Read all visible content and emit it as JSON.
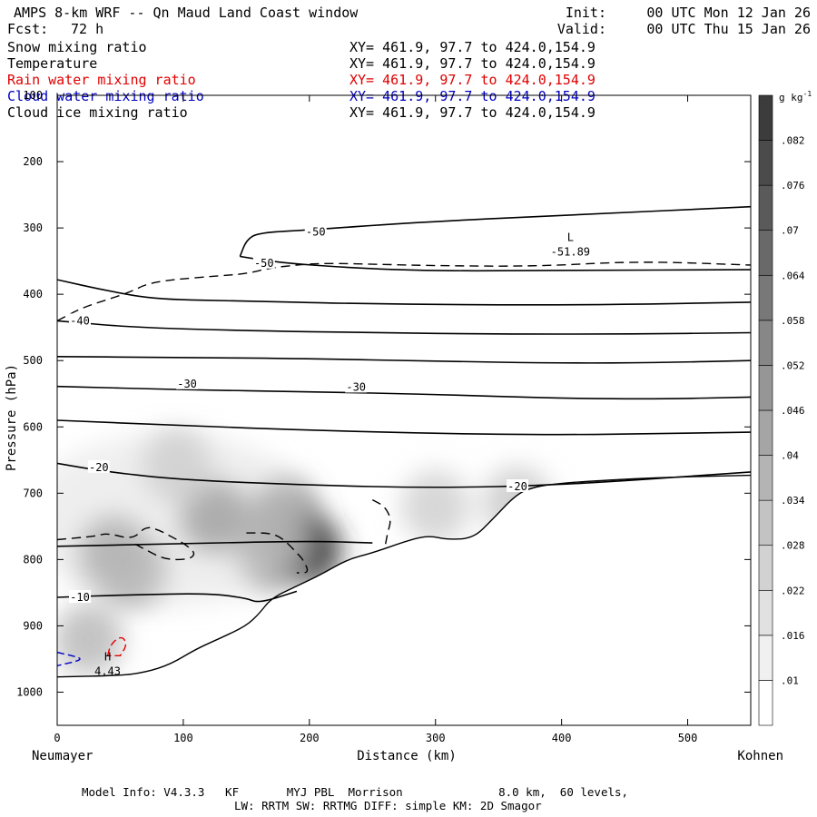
{
  "header": {
    "title": "AMPS 8-km WRF -- Qn Maud Land Coast window",
    "fcst_label": "Fcst:",
    "fcst_value": "72 h",
    "init_label": "Init:",
    "init_value": "00 UTC Mon 12 Jan 26",
    "valid_label": "Valid:",
    "valid_value": "00 UTC Thu 15 Jan 26"
  },
  "fields": [
    {
      "name": "Snow mixing ratio",
      "xy": "XY= 461.9, 97.7 to 424.0,154.9",
      "color": "#000000"
    },
    {
      "name": "Temperature",
      "xy": "XY= 461.9, 97.7 to 424.0,154.9",
      "color": "#000000"
    },
    {
      "name": "Rain water mixing ratio",
      "xy": "XY= 461.9, 97.7 to 424.0,154.9",
      "color": "#e00000"
    },
    {
      "name": "Cloud water mixing ratio",
      "xy": "XY= 461.9, 97.7 to 424.0,154.9",
      "color": "#0000c0"
    },
    {
      "name": "Cloud ice mixing ratio",
      "xy": "XY= 461.9, 97.7 to 424.0,154.9",
      "color": "#000000"
    }
  ],
  "chart_data": {
    "type": "cross-section",
    "xlabel": "Distance (km)",
    "ylabel": "Pressure (hPa)",
    "xlim": [
      0,
      550
    ],
    "ylim": [
      1050,
      100
    ],
    "x_ticks": [
      0,
      100,
      200,
      300,
      400,
      500
    ],
    "y_ticks": [
      200,
      300,
      400,
      500,
      600,
      700,
      800,
      900,
      1000
    ],
    "y_tick_labels": [
      "200",
      "300",
      "400",
      "500",
      "600",
      "700",
      "800",
      "900",
      "1000"
    ],
    "y_top_label": "100",
    "left_end": "Neumayer",
    "right_end": "Kohnen",
    "colorbar": {
      "unit": "g kg",
      "unit_exp": "-1",
      "levels": [
        0.01,
        0.016,
        0.022,
        0.028,
        0.034,
        0.04,
        0.046,
        0.052,
        0.058,
        0.064,
        0.07,
        0.076,
        0.082
      ],
      "labels": [
        ".01",
        ".016",
        ".022",
        ".028",
        ".034",
        ".04",
        ".046",
        ".052",
        ".058",
        ".064",
        ".07",
        ".076",
        ".082"
      ]
    },
    "temperature_labels": [
      {
        "text": "-50",
        "x": 205,
        "p": 306
      },
      {
        "text": "-50",
        "x": 164,
        "p": 353
      },
      {
        "text": "-40",
        "x": 18,
        "p": 440
      },
      {
        "text": "-30",
        "x": 103,
        "p": 535
      },
      {
        "text": "-30",
        "x": 237,
        "p": 540
      },
      {
        "text": "-20",
        "x": 33,
        "p": 661
      },
      {
        "text": "-20",
        "x": 365,
        "p": 690
      },
      {
        "text": "-10",
        "x": 18,
        "p": 857
      }
    ],
    "extrema": [
      {
        "kind": "L",
        "value": "-51.89",
        "x": 407,
        "p": 320
      },
      {
        "kind": "H",
        "value": "4.43",
        "x": 40,
        "p": 952
      }
    ],
    "isotherms": [
      {
        "label": "-50",
        "points": [
          [
            145,
            343
          ],
          [
            150,
            318
          ],
          [
            160,
            307
          ],
          [
            200,
            303
          ],
          [
            280,
            292
          ],
          [
            400,
            281
          ],
          [
            550,
            268
          ]
        ]
      },
      {
        "label": "-50",
        "points": [
          [
            145,
            343
          ],
          [
            175,
            352
          ],
          [
            230,
            360
          ],
          [
            300,
            365
          ],
          [
            400,
            364
          ],
          [
            550,
            363
          ]
        ]
      },
      {
        "label": "-40",
        "points": [
          [
            0,
            378
          ],
          [
            40,
            395
          ],
          [
            80,
            408
          ],
          [
            150,
            410
          ],
          [
            230,
            414
          ],
          [
            330,
            416
          ],
          [
            430,
            416
          ],
          [
            550,
            412
          ]
        ]
      },
      {
        "label": "-40",
        "points": [
          [
            0,
            440
          ],
          [
            60,
            450
          ],
          [
            150,
            455
          ],
          [
            250,
            458
          ],
          [
            350,
            460
          ],
          [
            450,
            460
          ],
          [
            550,
            458
          ]
        ]
      },
      {
        "label": "-30",
        "points": [
          [
            0,
            494
          ],
          [
            80,
            495
          ],
          [
            200,
            497
          ],
          [
            300,
            501
          ],
          [
            400,
            504
          ],
          [
            480,
            503
          ],
          [
            550,
            500
          ]
        ]
      },
      {
        "label": "-30",
        "points": [
          [
            0,
            539
          ],
          [
            100,
            544
          ],
          [
            200,
            547
          ],
          [
            300,
            551
          ],
          [
            400,
            557
          ],
          [
            480,
            558
          ],
          [
            550,
            555
          ]
        ]
      },
      {
        "label": "",
        "points": [
          [
            0,
            590
          ],
          [
            100,
            598
          ],
          [
            200,
            605
          ],
          [
            300,
            610
          ],
          [
            400,
            612
          ],
          [
            480,
            610
          ],
          [
            550,
            608
          ]
        ]
      },
      {
        "label": "",
        "points": [
          [
            0,
            655
          ],
          [
            40,
            668
          ],
          [
            100,
            680
          ],
          [
            200,
            688
          ],
          [
            300,
            692
          ],
          [
            400,
            688
          ],
          [
            550,
            668
          ]
        ]
      },
      {
        "label": "-20",
        "points": [
          [
            0,
            780
          ],
          [
            100,
            776
          ],
          [
            200,
            772
          ],
          [
            250,
            775
          ]
        ]
      },
      {
        "label": "-10",
        "points": [
          [
            0,
            857
          ],
          [
            60,
            853
          ],
          [
            120,
            851
          ],
          [
            150,
            858
          ],
          [
            160,
            866
          ],
          [
            190,
            848
          ]
        ]
      }
    ],
    "terrain": [
      [
        0,
        977
      ],
      [
        50,
        975
      ],
      [
        70,
        970
      ],
      [
        90,
        958
      ],
      [
        110,
        935
      ],
      [
        130,
        918
      ],
      [
        150,
        900
      ],
      [
        160,
        882
      ],
      [
        170,
        858
      ],
      [
        190,
        840
      ],
      [
        210,
        822
      ],
      [
        230,
        800
      ],
      [
        250,
        790
      ],
      [
        280,
        770
      ],
      [
        295,
        764
      ],
      [
        310,
        770
      ],
      [
        330,
        768
      ],
      [
        345,
        740
      ],
      [
        365,
        700
      ],
      [
        380,
        690
      ],
      [
        395,
        686
      ],
      [
        420,
        682
      ],
      [
        480,
        676
      ],
      [
        550,
        673
      ]
    ],
    "snow_blobs": [
      {
        "x": 45,
        "p": 790,
        "value": 0.05
      },
      {
        "x": 60,
        "p": 815,
        "value": 0.04
      },
      {
        "x": 125,
        "p": 735,
        "value": 0.06
      },
      {
        "x": 180,
        "p": 735,
        "value": 0.055
      },
      {
        "x": 198,
        "p": 785,
        "value": 0.085
      },
      {
        "x": 170,
        "p": 790,
        "value": 0.045
      },
      {
        "x": 95,
        "p": 660,
        "value": 0.02
      },
      {
        "x": 25,
        "p": 920,
        "value": 0.022
      },
      {
        "x": 300,
        "p": 720,
        "value": 0.012
      },
      {
        "x": 365,
        "p": 715,
        "value": 0.015
      }
    ],
    "cloud_ice": [
      [
        0,
        440
      ],
      [
        20,
        420
      ],
      [
        40,
        408
      ],
      [
        60,
        395
      ],
      [
        70,
        385
      ],
      [
        90,
        378
      ],
      [
        130,
        372
      ],
      [
        150,
        369
      ],
      [
        170,
        360
      ],
      [
        190,
        356
      ],
      [
        210,
        353
      ],
      [
        260,
        355
      ],
      [
        300,
        357
      ],
      [
        380,
        358
      ],
      [
        460,
        350
      ],
      [
        550,
        356
      ]
    ],
    "cloud_ice_cells": [
      [
        [
          0,
          770
        ],
        [
          30,
          765
        ],
        [
          40,
          760
        ],
        [
          60,
          770
        ],
        [
          70,
          750
        ],
        [
          80,
          755
        ],
        [
          90,
          765
        ],
        [
          100,
          775
        ],
        [
          110,
          790
        ],
        [
          105,
          800
        ],
        [
          85,
          800
        ],
        [
          70,
          785
        ],
        [
          60,
          775
        ]
      ],
      [
        [
          150,
          760
        ],
        [
          170,
          760
        ],
        [
          180,
          770
        ],
        [
          190,
          790
        ],
        [
          195,
          800
        ],
        [
          200,
          820
        ],
        [
          190,
          820
        ]
      ],
      [
        [
          250,
          710
        ],
        [
          260,
          720
        ],
        [
          265,
          740
        ],
        [
          262,
          760
        ],
        [
          260,
          780
        ]
      ]
    ],
    "rain": [
      [
        40,
        945
      ],
      [
        42,
        930
      ],
      [
        48,
        918
      ],
      [
        53,
        918
      ],
      [
        55,
        930
      ],
      [
        50,
        945
      ]
    ],
    "cloud_water": [
      [
        0,
        940
      ],
      [
        12,
        945
      ],
      [
        20,
        950
      ],
      [
        12,
        955
      ],
      [
        0,
        960
      ]
    ]
  },
  "footer": {
    "line1": "Model Info: V4.3.3   KF       MYJ PBL  Morrison              8.0 km,  60 levels,",
    "line2": "LW: RRTM SW: RRTMG   DIFF: simple KM: 2D Smagor"
  }
}
